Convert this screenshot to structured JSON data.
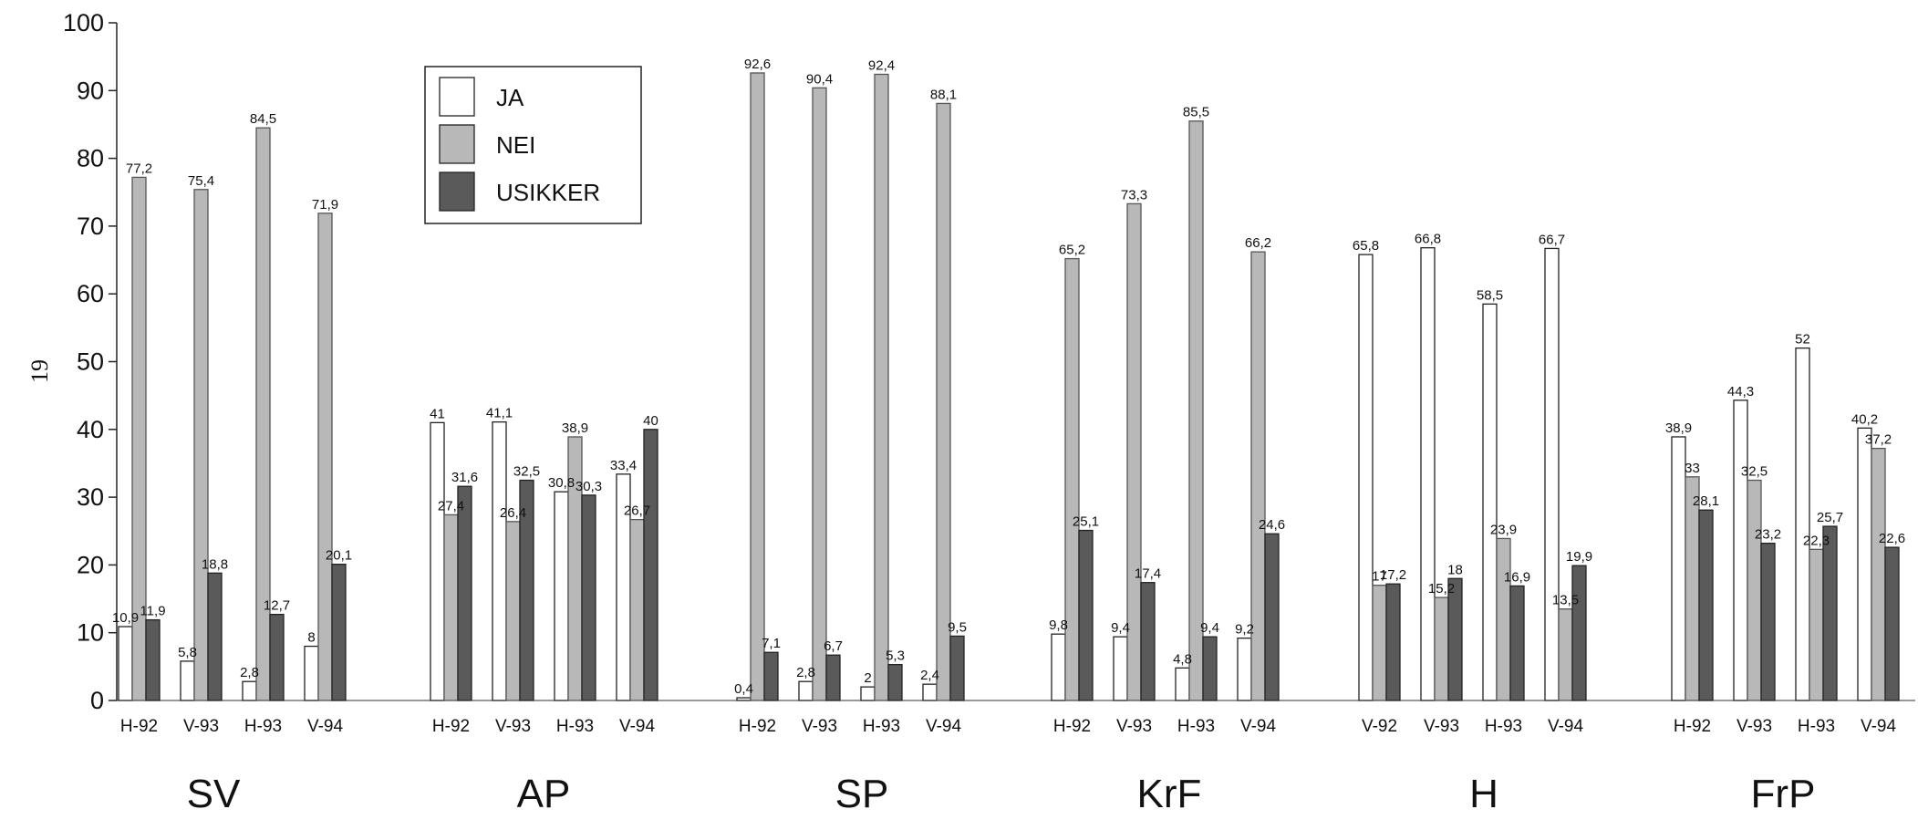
{
  "page_number": "19",
  "chart_data": {
    "type": "bar",
    "ylim": [
      0,
      100
    ],
    "yticks": [
      0,
      10,
      20,
      30,
      40,
      50,
      60,
      70,
      80,
      90,
      100
    ],
    "grid": false,
    "legend_placement": "top-left",
    "series": [
      {
        "name": "JA",
        "color": "#ffffff"
      },
      {
        "name": "NEI",
        "color": "#b8b8b8"
      },
      {
        "name": "USIKKER",
        "color": "#5a5a5a"
      }
    ],
    "groups": [
      {
        "party": "SV",
        "bars": [
          {
            "label": "H-92",
            "values": [
              10.9,
              77.2,
              11.9
            ],
            "texts": [
              "10,9",
              "77,2",
              "11,9"
            ]
          },
          {
            "label": "V-93",
            "values": [
              5.8,
              75.4,
              18.8
            ],
            "texts": [
              "5,8",
              "75,4",
              "18,8"
            ]
          },
          {
            "label": "H-93",
            "values": [
              2.8,
              84.5,
              12.7
            ],
            "texts": [
              "2,8",
              "84,5",
              "12,7"
            ]
          },
          {
            "label": "V-94",
            "values": [
              8,
              71.9,
              20.1
            ],
            "texts": [
              "8",
              "71,9",
              "20,1"
            ]
          }
        ]
      },
      {
        "party": "AP",
        "bars": [
          {
            "label": "H-92",
            "values": [
              41,
              27.4,
              31.6
            ],
            "texts": [
              "41",
              "27,4",
              "31,6"
            ]
          },
          {
            "label": "V-93",
            "values": [
              41.1,
              26.4,
              32.5
            ],
            "texts": [
              "41,1",
              "26,4",
              "32,5"
            ]
          },
          {
            "label": "H-93",
            "values": [
              30.8,
              38.9,
              30.3
            ],
            "texts": [
              "30,8",
              "38,9",
              "30,3"
            ]
          },
          {
            "label": "V-94",
            "values": [
              33.4,
              26.7,
              40
            ],
            "texts": [
              "33,4",
              "26,7",
              "40"
            ]
          }
        ]
      },
      {
        "party": "SP",
        "bars": [
          {
            "label": "H-92",
            "values": [
              0.4,
              92.6,
              7.1
            ],
            "texts": [
              "0,4",
              "92,6",
              "7,1"
            ]
          },
          {
            "label": "V-93",
            "values": [
              2.8,
              90.4,
              6.7
            ],
            "texts": [
              "2,8",
              "90,4",
              "6,7"
            ]
          },
          {
            "label": "H-93",
            "values": [
              2,
              92.4,
              5.3
            ],
            "texts": [
              "2",
              "92,4",
              "5,3"
            ]
          },
          {
            "label": "V-94",
            "values": [
              2.4,
              88.1,
              9.5
            ],
            "texts": [
              "2,4",
              "88,1",
              "9,5"
            ]
          }
        ]
      },
      {
        "party": "KrF",
        "bars": [
          {
            "label": "H-92",
            "values": [
              9.8,
              65.2,
              25.1
            ],
            "texts": [
              "9,8",
              "65,2",
              "25,1"
            ]
          },
          {
            "label": "V-93",
            "values": [
              9.4,
              73.3,
              17.4
            ],
            "texts": [
              "9,4",
              "73,3",
              "17,4"
            ]
          },
          {
            "label": "H-93",
            "values": [
              4.8,
              85.5,
              9.4
            ],
            "texts": [
              "4,8",
              "85,5",
              "9,4"
            ]
          },
          {
            "label": "V-94",
            "values": [
              9.2,
              66.2,
              24.6
            ],
            "texts": [
              "9,2",
              "66,2",
              "24,6"
            ]
          }
        ]
      },
      {
        "party": "H",
        "bars": [
          {
            "label": "V-92",
            "values": [
              65.8,
              17,
              17.2
            ],
            "texts": [
              "65,8",
              "17",
              "17,2"
            ]
          },
          {
            "label": "V-93",
            "values": [
              66.8,
              15.2,
              18
            ],
            "texts": [
              "66,8",
              "15,2",
              "18"
            ]
          },
          {
            "label": "H-93",
            "values": [
              58.5,
              23.9,
              16.9
            ],
            "texts": [
              "58,5",
              "23,9",
              "16,9"
            ]
          },
          {
            "label": "V-94",
            "values": [
              66.7,
              13.5,
              19.9
            ],
            "texts": [
              "66,7",
              "13,5",
              "19,9"
            ]
          }
        ]
      },
      {
        "party": "FrP",
        "bars": [
          {
            "label": "H-92",
            "values": [
              38.9,
              33,
              28.1
            ],
            "texts": [
              "38,9",
              "33",
              "28,1"
            ]
          },
          {
            "label": "V-93",
            "values": [
              44.3,
              32.5,
              23.2
            ],
            "texts": [
              "44,3",
              "32,5",
              "23,2"
            ]
          },
          {
            "label": "H-93",
            "values": [
              52,
              22.3,
              25.7
            ],
            "texts": [
              "52",
              "22,3",
              "25,7"
            ]
          },
          {
            "label": "V-94",
            "values": [
              40.2,
              37.2,
              22.6
            ],
            "texts": [
              "40,2",
              "37,2",
              "22,6"
            ]
          }
        ]
      }
    ]
  }
}
